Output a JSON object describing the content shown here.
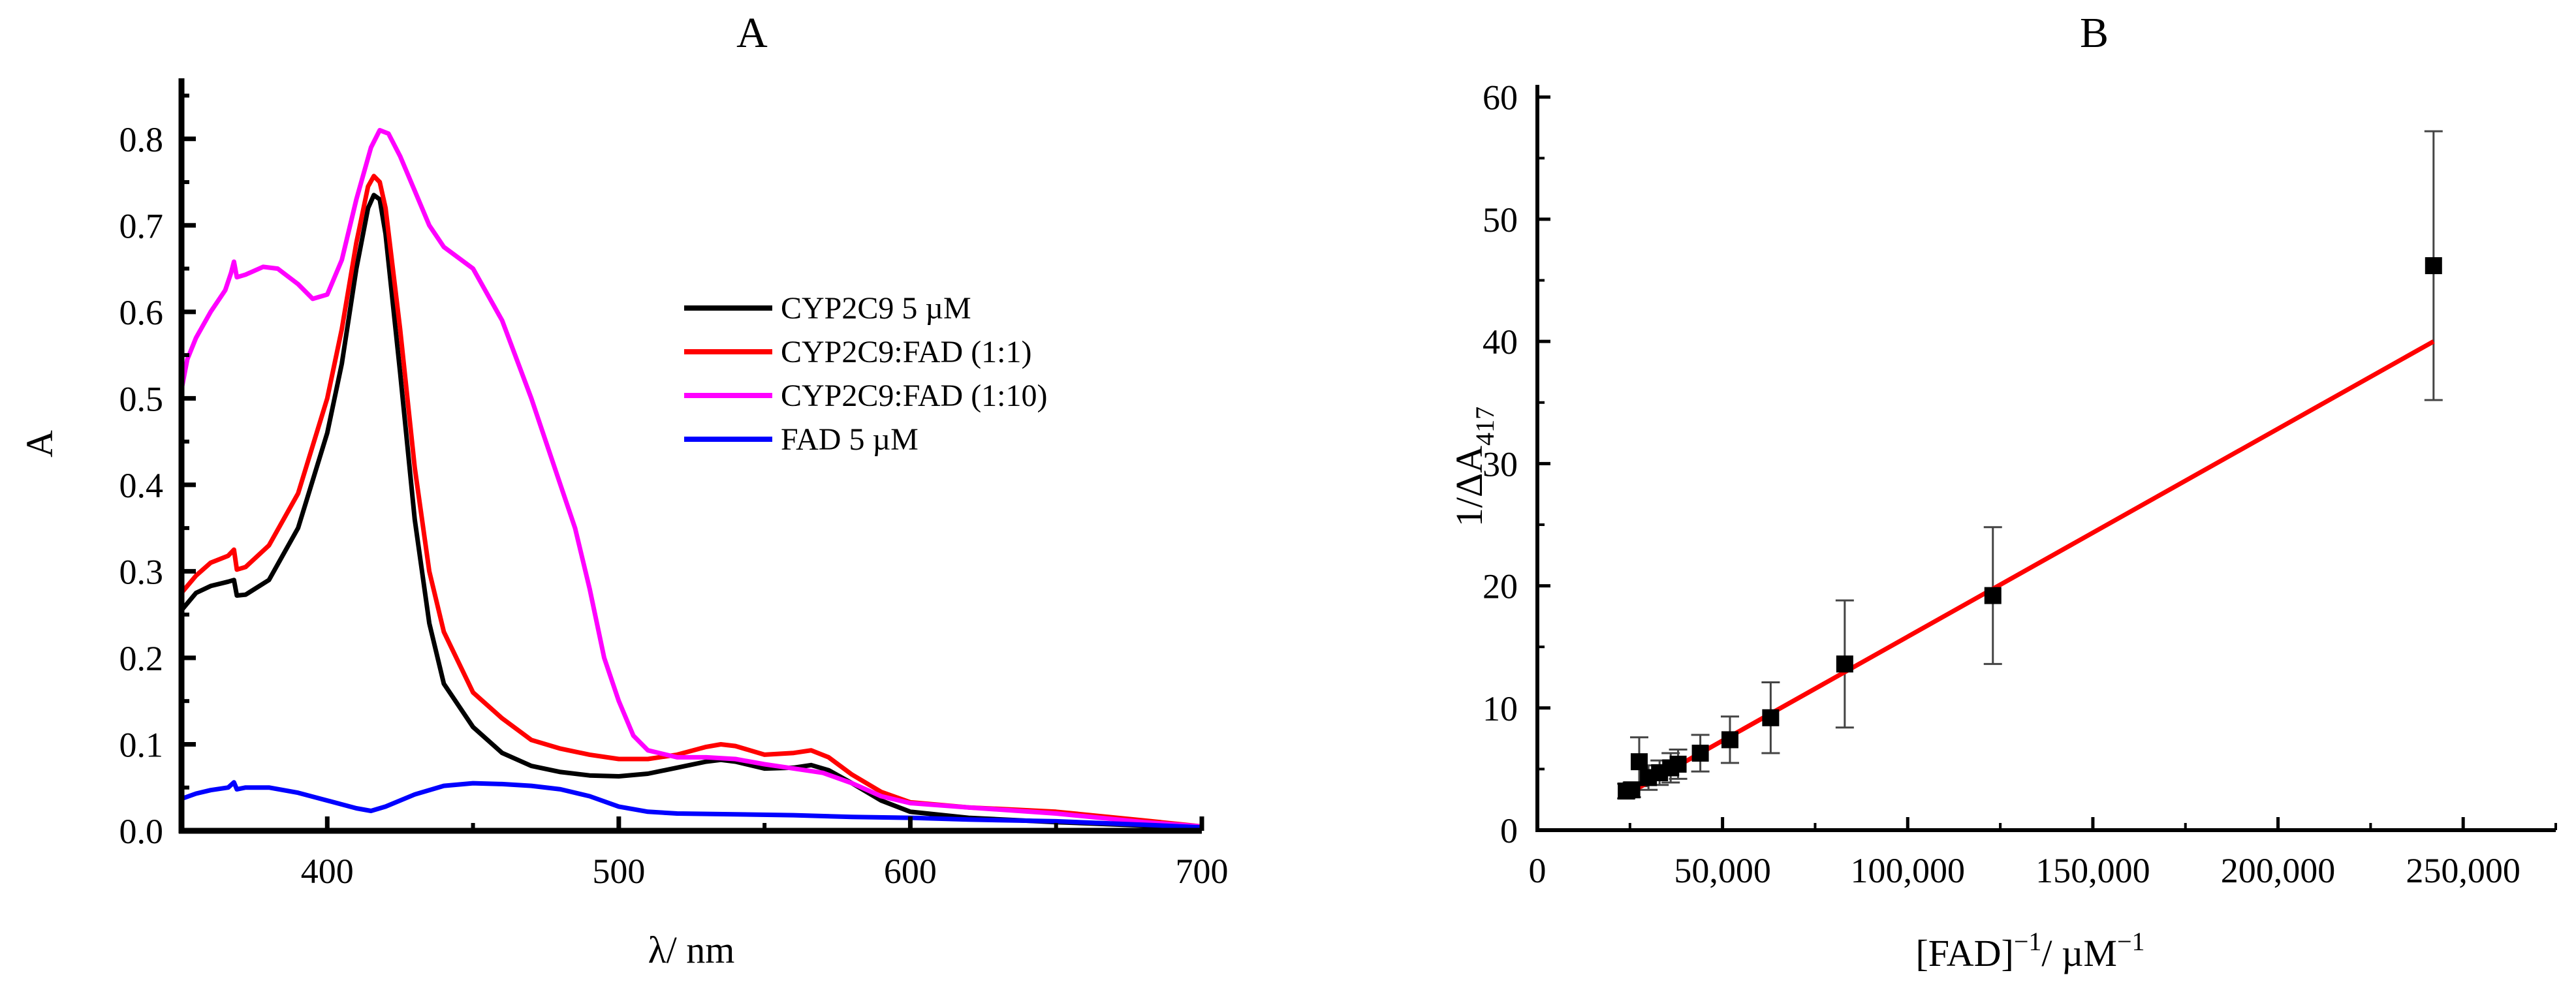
{
  "chart_data": [
    {
      "panel": "A",
      "type": "line",
      "title": "A",
      "xlabel": "λ/ nm",
      "ylabel": "A",
      "xlim": [
        350,
        700
      ],
      "ylim": [
        0,
        0.87
      ],
      "xticks": [
        400,
        500,
        600,
        700
      ],
      "xtick_labels": [
        "400",
        "500",
        "600",
        "700"
      ],
      "yticks": [
        0.0,
        0.1,
        0.2,
        0.3,
        0.4,
        0.5,
        0.6,
        0.7,
        0.8
      ],
      "ytick_labels": [
        "0.0",
        "0.1",
        "0.2",
        "0.3",
        "0.4",
        "0.5",
        "0.6",
        "0.7",
        "0.8"
      ],
      "grid": false,
      "legend_position": "center-right",
      "series": [
        {
          "name": "CYP2C9 5 µM",
          "color": "#000000",
          "points": [
            [
              350,
              0.255
            ],
            [
              355,
              0.275
            ],
            [
              360,
              0.283
            ],
            [
              366,
              0.288
            ],
            [
              368,
              0.29
            ],
            [
              369,
              0.272
            ],
            [
              372,
              0.273
            ],
            [
              380,
              0.29
            ],
            [
              390,
              0.35
            ],
            [
              400,
              0.46
            ],
            [
              405,
              0.54
            ],
            [
              410,
              0.65
            ],
            [
              414,
              0.72
            ],
            [
              416,
              0.735
            ],
            [
              418,
              0.73
            ],
            [
              420,
              0.69
            ],
            [
              425,
              0.53
            ],
            [
              430,
              0.36
            ],
            [
              435,
              0.24
            ],
            [
              440,
              0.17
            ],
            [
              450,
              0.12
            ],
            [
              460,
              0.09
            ],
            [
              470,
              0.075
            ],
            [
              480,
              0.068
            ],
            [
              490,
              0.064
            ],
            [
              500,
              0.063
            ],
            [
              510,
              0.066
            ],
            [
              520,
              0.073
            ],
            [
              530,
              0.08
            ],
            [
              535,
              0.082
            ],
            [
              540,
              0.08
            ],
            [
              550,
              0.072
            ],
            [
              560,
              0.073
            ],
            [
              566,
              0.076
            ],
            [
              572,
              0.07
            ],
            [
              580,
              0.055
            ],
            [
              590,
              0.035
            ],
            [
              600,
              0.022
            ],
            [
              620,
              0.015
            ],
            [
              650,
              0.01
            ],
            [
              680,
              0.006
            ],
            [
              700,
              0.003
            ]
          ]
        },
        {
          "name": "CYP2C9:FAD (1:1)",
          "color": "#ff0000",
          "points": [
            [
              350,
              0.275
            ],
            [
              355,
              0.295
            ],
            [
              360,
              0.31
            ],
            [
              366,
              0.318
            ],
            [
              368,
              0.325
            ],
            [
              369,
              0.302
            ],
            [
              372,
              0.305
            ],
            [
              380,
              0.33
            ],
            [
              390,
              0.39
            ],
            [
              400,
              0.5
            ],
            [
              405,
              0.58
            ],
            [
              410,
              0.68
            ],
            [
              414,
              0.745
            ],
            [
              416,
              0.757
            ],
            [
              418,
              0.75
            ],
            [
              420,
              0.72
            ],
            [
              425,
              0.58
            ],
            [
              430,
              0.42
            ],
            [
              435,
              0.3
            ],
            [
              440,
              0.23
            ],
            [
              450,
              0.16
            ],
            [
              460,
              0.13
            ],
            [
              470,
              0.105
            ],
            [
              480,
              0.095
            ],
            [
              490,
              0.088
            ],
            [
              500,
              0.083
            ],
            [
              510,
              0.083
            ],
            [
              520,
              0.088
            ],
            [
              530,
              0.097
            ],
            [
              535,
              0.1
            ],
            [
              540,
              0.098
            ],
            [
              550,
              0.088
            ],
            [
              560,
              0.09
            ],
            [
              566,
              0.093
            ],
            [
              572,
              0.085
            ],
            [
              580,
              0.065
            ],
            [
              590,
              0.045
            ],
            [
              600,
              0.033
            ],
            [
              620,
              0.027
            ],
            [
              650,
              0.022
            ],
            [
              680,
              0.012
            ],
            [
              700,
              0.005
            ]
          ]
        },
        {
          "name": "CYP2C9:FAD (1:10)",
          "color": "#ff00ff",
          "points": [
            [
              350,
              0.51
            ],
            [
              352,
              0.545
            ],
            [
              355,
              0.57
            ],
            [
              360,
              0.6
            ],
            [
              365,
              0.625
            ],
            [
              367,
              0.645
            ],
            [
              368,
              0.658
            ],
            [
              369,
              0.64
            ],
            [
              372,
              0.643
            ],
            [
              378,
              0.652
            ],
            [
              383,
              0.65
            ],
            [
              390,
              0.632
            ],
            [
              395,
              0.615
            ],
            [
              400,
              0.62
            ],
            [
              405,
              0.66
            ],
            [
              410,
              0.73
            ],
            [
              415,
              0.79
            ],
            [
              418,
              0.81
            ],
            [
              421,
              0.806
            ],
            [
              425,
              0.78
            ],
            [
              430,
              0.74
            ],
            [
              435,
              0.7
            ],
            [
              440,
              0.675
            ],
            [
              450,
              0.65
            ],
            [
              460,
              0.59
            ],
            [
              470,
              0.5
            ],
            [
              480,
              0.4
            ],
            [
              485,
              0.35
            ],
            [
              490,
              0.28
            ],
            [
              495,
              0.2
            ],
            [
              500,
              0.15
            ],
            [
              505,
              0.11
            ],
            [
              510,
              0.093
            ],
            [
              520,
              0.085
            ],
            [
              530,
              0.085
            ],
            [
              540,
              0.083
            ],
            [
              550,
              0.077
            ],
            [
              560,
              0.072
            ],
            [
              570,
              0.067
            ],
            [
              580,
              0.055
            ],
            [
              590,
              0.04
            ],
            [
              600,
              0.032
            ],
            [
              620,
              0.027
            ],
            [
              650,
              0.02
            ],
            [
              680,
              0.01
            ],
            [
              700,
              0.005
            ]
          ]
        },
        {
          "name": "FAD 5 µM",
          "color": "#0000ff",
          "points": [
            [
              350,
              0.037
            ],
            [
              355,
              0.043
            ],
            [
              360,
              0.047
            ],
            [
              366,
              0.05
            ],
            [
              368,
              0.056
            ],
            [
              369,
              0.048
            ],
            [
              372,
              0.05
            ],
            [
              380,
              0.05
            ],
            [
              390,
              0.044
            ],
            [
              400,
              0.035
            ],
            [
              410,
              0.026
            ],
            [
              415,
              0.023
            ],
            [
              420,
              0.028
            ],
            [
              430,
              0.042
            ],
            [
              440,
              0.052
            ],
            [
              450,
              0.055
            ],
            [
              460,
              0.054
            ],
            [
              470,
              0.052
            ],
            [
              480,
              0.048
            ],
            [
              490,
              0.04
            ],
            [
              500,
              0.028
            ],
            [
              510,
              0.022
            ],
            [
              520,
              0.02
            ],
            [
              540,
              0.019
            ],
            [
              560,
              0.018
            ],
            [
              580,
              0.016
            ],
            [
              600,
              0.015
            ],
            [
              620,
              0.013
            ],
            [
              650,
              0.011
            ],
            [
              680,
              0.007
            ],
            [
              700,
              0.004
            ]
          ]
        }
      ]
    },
    {
      "panel": "B",
      "type": "scatter",
      "title": "B",
      "xlabel": "[FAD]⁻¹/ µM⁻¹",
      "xlabel_parts": {
        "a": "[FAD]",
        "b": "−1",
        "c": "/ µM",
        "d": "−1"
      },
      "ylabel": "1/ΔA417",
      "ylabel_parts": {
        "a": "1/ΔA",
        "b": "417"
      },
      "xlim": [
        0,
        275000
      ],
      "ylim": [
        0,
        61
      ],
      "xticks": [
        0,
        50000,
        100000,
        150000,
        200000,
        250000
      ],
      "xtick_labels": [
        "0",
        "50,000",
        "100,000",
        "150,000",
        "200,000",
        "250,000"
      ],
      "yticks": [
        0,
        10,
        20,
        30,
        40,
        50,
        60
      ],
      "ytick_labels": [
        "0",
        "10",
        "20",
        "30",
        "40",
        "50",
        "60"
      ],
      "grid": false,
      "points": [
        {
          "x": 24000,
          "y": 3.2,
          "err": 0.6
        },
        {
          "x": 25500,
          "y": 3.3,
          "err": 0.6
        },
        {
          "x": 27500,
          "y": 5.6,
          "err": 2.0
        },
        {
          "x": 30000,
          "y": 4.3,
          "err": 1.0
        },
        {
          "x": 33000,
          "y": 4.7,
          "err": 1.0
        },
        {
          "x": 36000,
          "y": 5.1,
          "err": 1.2
        },
        {
          "x": 38000,
          "y": 5.4,
          "err": 1.2
        },
        {
          "x": 44000,
          "y": 6.3,
          "err": 1.5
        },
        {
          "x": 52000,
          "y": 7.4,
          "err": 1.9
        },
        {
          "x": 63000,
          "y": 9.2,
          "err": 2.9
        },
        {
          "x": 83000,
          "y": 13.6,
          "err": 5.2
        },
        {
          "x": 123000,
          "y": 19.2,
          "err": 5.6
        },
        {
          "x": 242000,
          "y": 46.2,
          "err": 11.0
        }
      ],
      "fit": {
        "color": "#ff0000",
        "x": [
          24000,
          242000
        ],
        "y": [
          2.9,
          40.0
        ]
      }
    }
  ]
}
